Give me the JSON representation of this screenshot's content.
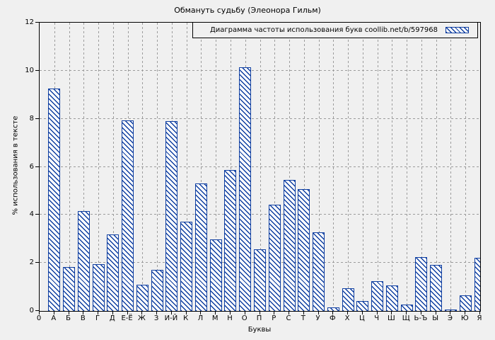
{
  "title": "Обмануть судьбу (Элеонора Гильм)",
  "legend": {
    "label": "Диаграмма частоты использования букв coollib.net/b/597968",
    "swatch_icon": "blue-diagonal-hatch"
  },
  "axes": {
    "y_label": "% использования в тексте",
    "x_label": "Буквы",
    "origin_label": "0",
    "y_ticks": [
      0,
      2,
      4,
      6,
      8,
      10,
      12
    ]
  },
  "colors": {
    "bar": "#0d3da0",
    "grid": "#9c9c9c",
    "background": "#f0f0f0",
    "axis": "#000000"
  },
  "chart_data": {
    "type": "bar",
    "title": "Обмануть судьбу (Элеонора Гильм)",
    "legend_label": "Диаграмма частоты использования букв coollib.net/b/597968",
    "xlabel": "Буквы",
    "ylabel": "% использования в тексте",
    "ylim": [
      0,
      12
    ],
    "grid": true,
    "legend_position": "top-right-inside-boxed",
    "bar_style": "white fill with blue diagonal hatch",
    "categories": [
      "А",
      "Б",
      "В",
      "Г",
      "Д",
      "Е-Ё",
      "Ж",
      "З",
      "И-Й",
      "К",
      "Л",
      "М",
      "Н",
      "О",
      "П",
      "Р",
      "С",
      "Т",
      "У",
      "Ф",
      "Х",
      "Ц",
      "Ч",
      "Ш",
      "Щ",
      "Ь-Ъ",
      "Ы",
      "Э",
      "Ю",
      "Я"
    ],
    "values": [
      9.25,
      1.84,
      4.17,
      1.96,
      3.17,
      7.93,
      1.08,
      1.7,
      7.9,
      3.73,
      5.31,
      2.97,
      5.88,
      10.14,
      2.56,
      4.43,
      5.46,
      5.07,
      3.26,
      0.15,
      0.94,
      0.41,
      1.25,
      1.06,
      0.26,
      2.24,
      1.93,
      0.05,
      0.65,
      2.2
    ]
  }
}
